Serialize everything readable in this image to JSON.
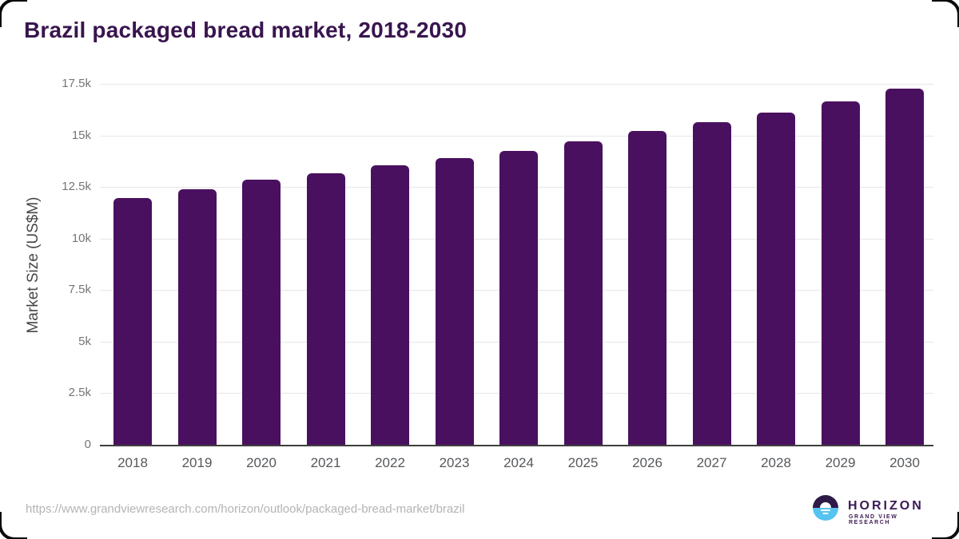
{
  "title": "Brazil packaged bread market, 2018-2030",
  "chart_data": {
    "type": "bar",
    "title": "Brazil packaged bread market, 2018-2030",
    "xlabel": "",
    "ylabel": "Market Size (US$M)",
    "categories": [
      "2018",
      "2019",
      "2020",
      "2021",
      "2022",
      "2023",
      "2024",
      "2025",
      "2026",
      "2027",
      "2028",
      "2029",
      "2030"
    ],
    "values": [
      11950,
      12400,
      12850,
      13150,
      13550,
      13900,
      14250,
      14700,
      15200,
      15650,
      16100,
      16650,
      17250
    ],
    "ylim": [
      0,
      17500
    ],
    "yticks": [
      0,
      2500,
      5000,
      7500,
      10000,
      12500,
      15000,
      17500
    ],
    "ytick_labels": [
      "0",
      "2.5k",
      "5k",
      "7.5k",
      "10k",
      "12.5k",
      "15k",
      "17.5k"
    ],
    "grid": true,
    "legend": false,
    "bar_color": "#4a1060"
  },
  "colors": {
    "title": "#39154f",
    "bar": "#4a1060",
    "gridline": "#e7e7e7",
    "axis_line": "#3f3f3f",
    "tick_text": "#747578",
    "year_text": "#55585c",
    "url_text": "#b4b4b6",
    "logo_dark_purple": "#2e1a47",
    "logo_light_blue": "#56c3f0",
    "logo_text": "#3b1a55"
  },
  "footer": {
    "source_url": "https://www.grandviewresearch.com/horizon/outlook/packaged-bread-market/brazil",
    "logo": {
      "brand": "HORIZON",
      "sub_brand": "GRAND VIEW RESEARCH"
    }
  }
}
